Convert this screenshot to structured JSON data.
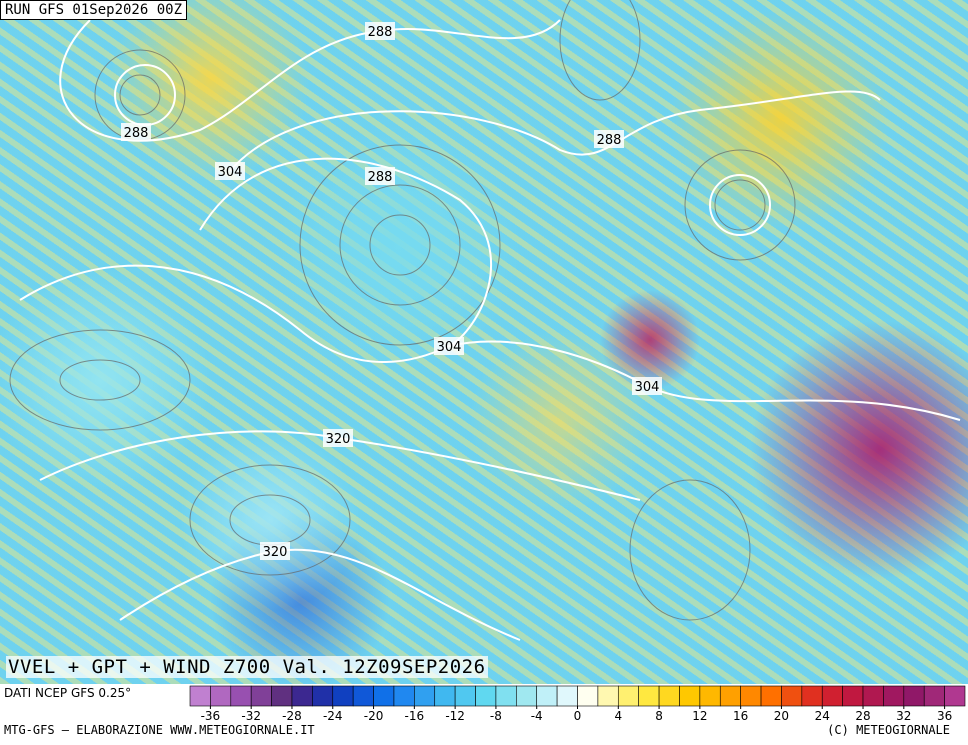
{
  "header": {
    "run": "RUN GFS 01Sep2026 00Z"
  },
  "title": "VVEL + GPT + WIND Z700 Val. 12Z09SEP2026",
  "contour_labels": [
    "288",
    "288",
    "288",
    "288",
    "304",
    "304",
    "304",
    "320",
    "320"
  ],
  "colorbar": {
    "source": "DATI NCEP GFS 0.25°",
    "range": [
      -38,
      38
    ],
    "ticks": [
      -36,
      -32,
      -28,
      -24,
      -20,
      -16,
      -12,
      -8,
      -4,
      0,
      4,
      8,
      12,
      16,
      20,
      24,
      28,
      32,
      36
    ],
    "colors": [
      "#c080d0",
      "#b068c0",
      "#9850b0",
      "#804098",
      "#603080",
      "#3c2890",
      "#2030a8",
      "#1040c0",
      "#1058d8",
      "#1070e8",
      "#2088f0",
      "#30a0f0",
      "#40b8f0",
      "#50c8f0",
      "#60d8f0",
      "#80e0f0",
      "#a0e8f0",
      "#c0f0f8",
      "#e0f8fc",
      "#fffff0",
      "#fff8b0",
      "#fff070",
      "#ffe840",
      "#ffd820",
      "#ffc800",
      "#ffb800",
      "#ffa000",
      "#ff8800",
      "#ff7000",
      "#f05010",
      "#e03020",
      "#d02030",
      "#c01840",
      "#b01850",
      "#a01860",
      "#901868",
      "#a02878",
      "#b03890"
    ]
  },
  "footer": {
    "left": "MTG-GFS – ELABORAZIONE WWW.METEOGIORNALE.IT",
    "right": "(C) METEOGIORNALE"
  }
}
